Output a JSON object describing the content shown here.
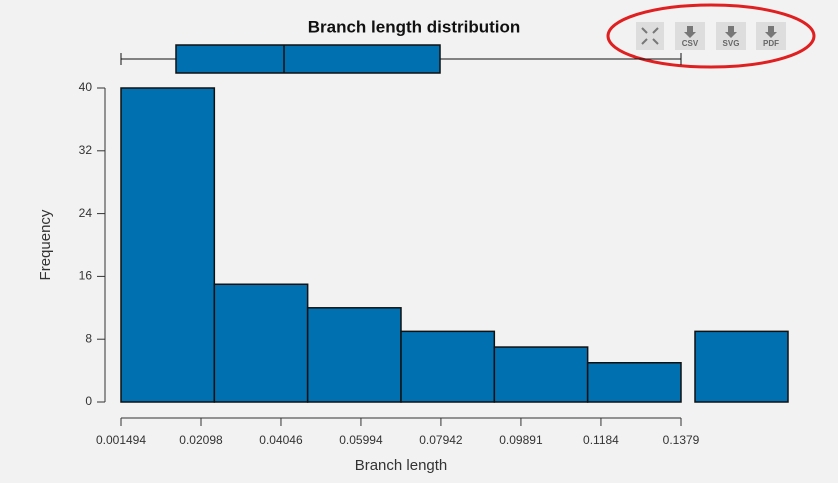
{
  "chart_data": {
    "type": "histogram",
    "title": "Branch length distribution",
    "x_label": "Branch length",
    "y_label": "Frequency",
    "bins": [
      0.001494,
      0.024228,
      0.046962,
      0.069696,
      0.09243,
      0.115164,
      0.1379
    ],
    "values": [
      40,
      15,
      12,
      9,
      7,
      5
    ],
    "overflow_count": 9,
    "color": "#0070b0",
    "box": {
      "min": 0.001494,
      "q1": 0.01489,
      "median": 0.0412,
      "q3": 0.0792,
      "max": 0.1379
    },
    "xlim": [
      0.001494,
      0.1379
    ],
    "xticks": [
      0.001494,
      0.02098,
      0.04046,
      0.05994,
      0.07942,
      0.09891,
      0.1184,
      0.1379
    ],
    "ylim": [
      0,
      40
    ],
    "yticks": [
      0,
      8,
      16,
      24,
      32,
      40
    ],
    "grid": false
  },
  "toolbar": [
    "CSV",
    "SVG",
    "PDF"
  ]
}
